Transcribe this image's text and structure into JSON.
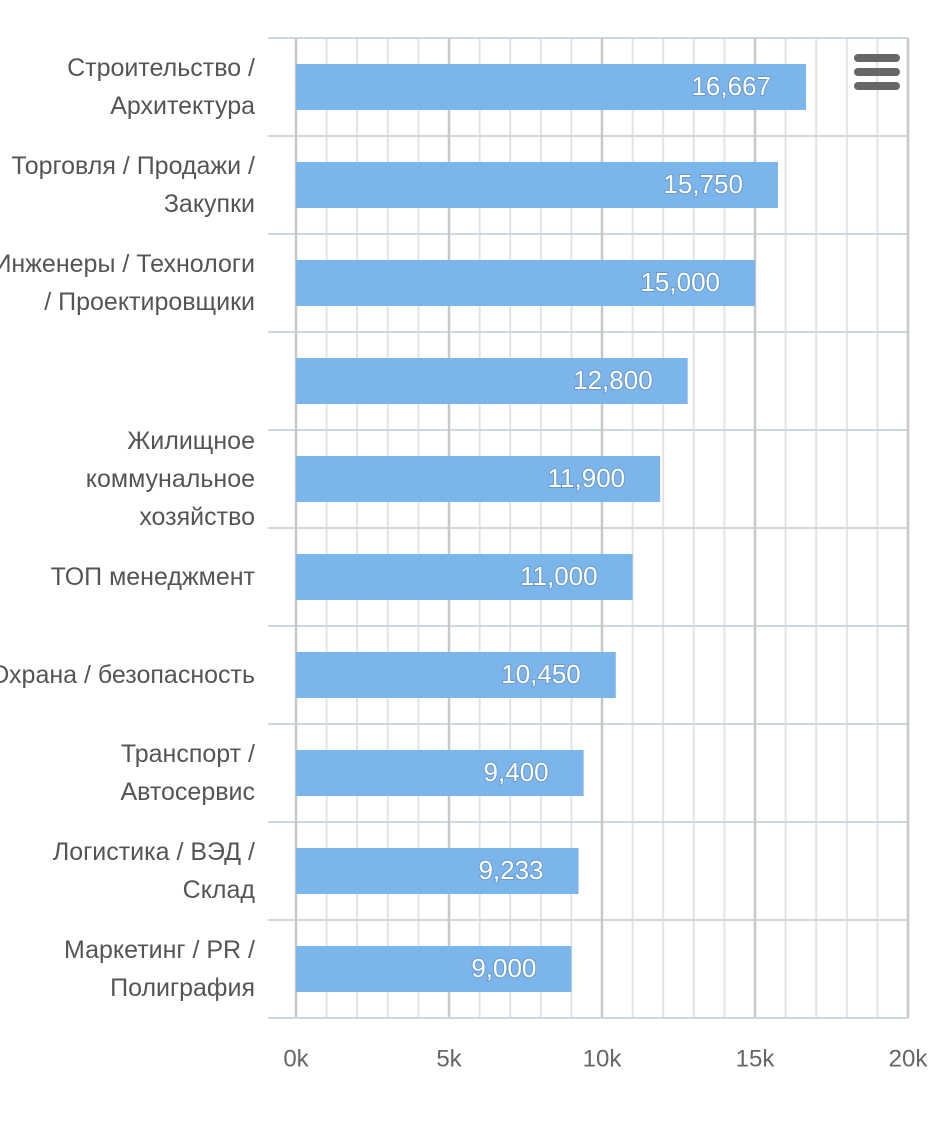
{
  "chart_data": {
    "type": "bar",
    "orientation": "horizontal",
    "categories": [
      "Строительство / Архитектура",
      "Торговля / Продажи / Закупки",
      "Инженеры / Технологи / Проектировщики",
      null,
      "Жилищное коммунальное хозяйство",
      "ТОП менеджмент",
      "Охрана / безопасность",
      "Транспорт / Автосервис",
      "Логистика / ВЭД / Склад",
      "Маркетинг / PR / Полиграфия"
    ],
    "values": [
      16667,
      15750,
      15000,
      12800,
      11900,
      11000,
      10450,
      9400,
      9233,
      9000
    ],
    "value_labels": [
      "16,667",
      "15,750",
      "15,000",
      "12,800",
      "11,900",
      "11,000",
      "10,450",
      "9,400",
      "9,233",
      "9,000"
    ],
    "color": "#7cb5ec",
    "xlim": [
      0,
      20000
    ],
    "xticks": [
      {
        "value": 0,
        "label": "0k"
      },
      {
        "value": 5000,
        "label": "5k"
      },
      {
        "value": 10000,
        "label": "10k"
      },
      {
        "value": 15000,
        "label": "15k"
      },
      {
        "value": 20000,
        "label": "20k"
      }
    ],
    "grid": true
  }
}
